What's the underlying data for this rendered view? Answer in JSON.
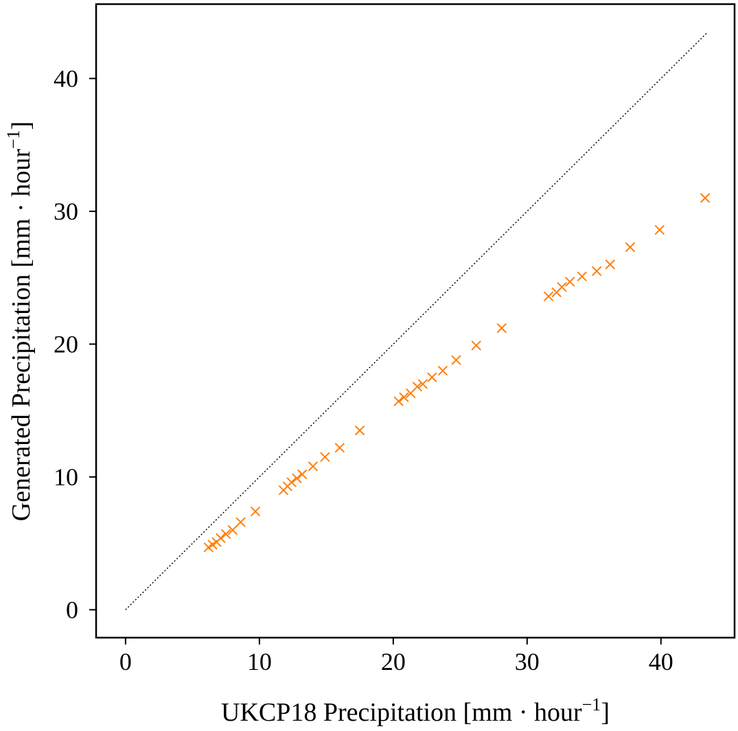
{
  "chart_data": {
    "type": "scatter",
    "title": "",
    "xlabel": {
      "main": "UKCP18 Precipitation [mm · hour",
      "sup": "−1",
      "end": "]"
    },
    "ylabel": {
      "main": "Generated Precipitation [mm · hour",
      "sup": "−1",
      "end": "]"
    },
    "xlim": [
      -2.2,
      45.5
    ],
    "ylim": [
      -2.1,
      45.6
    ],
    "xticks": [
      0,
      10,
      20,
      30,
      40
    ],
    "yticks": [
      0,
      10,
      20,
      30,
      40
    ],
    "xtick_labels": [
      "0",
      "10",
      "20",
      "30",
      "40"
    ],
    "ytick_labels": [
      "0",
      "10",
      "20",
      "30",
      "40"
    ],
    "grid": false,
    "reference_line": {
      "style": "dotted",
      "color": "#000000",
      "from": [
        0,
        0
      ],
      "to": [
        43.4,
        43.4
      ]
    },
    "marker": "x",
    "color": "#ff7f0e",
    "points": [
      [
        6.2,
        4.7
      ],
      [
        6.5,
        4.9
      ],
      [
        6.8,
        5.1
      ],
      [
        7.1,
        5.4
      ],
      [
        7.5,
        5.7
      ],
      [
        8.0,
        6.0
      ],
      [
        8.6,
        6.6
      ],
      [
        9.7,
        7.4
      ],
      [
        11.8,
        9.0
      ],
      [
        12.1,
        9.3
      ],
      [
        12.4,
        9.6
      ],
      [
        12.8,
        9.9
      ],
      [
        13.2,
        10.2
      ],
      [
        14.0,
        10.8
      ],
      [
        14.9,
        11.5
      ],
      [
        16.0,
        12.2
      ],
      [
        17.5,
        13.5
      ],
      [
        20.4,
        15.7
      ],
      [
        20.8,
        16.0
      ],
      [
        21.3,
        16.3
      ],
      [
        21.8,
        16.8
      ],
      [
        22.2,
        17.0
      ],
      [
        22.9,
        17.5
      ],
      [
        23.7,
        18.0
      ],
      [
        24.7,
        18.8
      ],
      [
        26.2,
        19.9
      ],
      [
        28.1,
        21.2
      ],
      [
        31.6,
        23.6
      ],
      [
        32.2,
        23.9
      ],
      [
        32.6,
        24.3
      ],
      [
        33.2,
        24.7
      ],
      [
        34.1,
        25.1
      ],
      [
        35.2,
        25.5
      ],
      [
        36.2,
        26.0
      ],
      [
        37.7,
        27.3
      ],
      [
        39.9,
        28.6
      ],
      [
        43.3,
        31.0
      ]
    ]
  }
}
